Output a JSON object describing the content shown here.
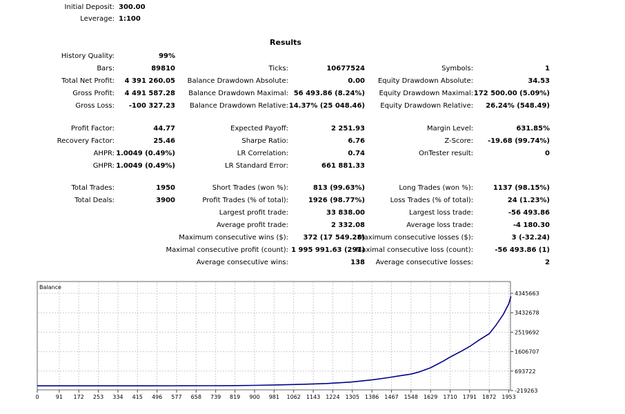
{
  "header": {
    "initial_deposit": {
      "label": "Initial Deposit:",
      "value": "300.00"
    },
    "leverage": {
      "label": "Leverage:",
      "value": "1:100"
    }
  },
  "results_title": "Results",
  "columns": [
    [
      {
        "label": "History Quality:",
        "value": "99%"
      },
      {
        "label": "Bars:",
        "value": "89810"
      },
      {
        "label": "Total Net Profit:",
        "value": "4 391 260.05"
      },
      {
        "label": "Gross Profit:",
        "value": "4 491 587.28"
      },
      {
        "label": "Gross Loss:",
        "value": "-100 327.23"
      },
      {
        "label": "",
        "value": ""
      },
      {
        "label": "Profit Factor:",
        "value": "44.77"
      },
      {
        "label": "Recovery Factor:",
        "value": "25.46"
      },
      {
        "label": "AHPR:",
        "value": "1.0049 (0.49%)"
      },
      {
        "label": "GHPR:",
        "value": "1.0049 (0.49%)"
      },
      {
        "label": "",
        "value": ""
      },
      {
        "label": "Total Trades:",
        "value": "1950"
      },
      {
        "label": "Total Deals:",
        "value": "3900"
      }
    ],
    [
      {
        "label": "",
        "value": ""
      },
      {
        "label": "Ticks:",
        "value": "10677524"
      },
      {
        "label": "Balance Drawdown Absolute:",
        "value": "0.00"
      },
      {
        "label": "Balance Drawdown Maximal:",
        "value": "56 493.86 (8.24%)"
      },
      {
        "label": "Balance Drawdown Relative:",
        "value": "14.37% (25 048.46)"
      },
      {
        "label": "",
        "value": ""
      },
      {
        "label": "Expected Payoff:",
        "value": "2 251.93"
      },
      {
        "label": "Sharpe Ratio:",
        "value": "6.76"
      },
      {
        "label": "LR Correlation:",
        "value": "0.74"
      },
      {
        "label": "LR Standard Error:",
        "value": "661 881.33"
      },
      {
        "label": "",
        "value": ""
      },
      {
        "label": "Short Trades (won %):",
        "value": "813 (99.63%)"
      },
      {
        "label": "Profit Trades (% of total):",
        "value": "1926 (98.77%)"
      },
      {
        "label": "Largest profit trade:",
        "value": "33 838.00"
      },
      {
        "label": "Average profit trade:",
        "value": "2 332.08"
      },
      {
        "label": "Maximum consecutive wins ($):",
        "value": "372 (17 549.28)"
      },
      {
        "label": "Maximal consecutive profit (count):",
        "value": "1 995 991.63 (291)"
      },
      {
        "label": "Average consecutive wins:",
        "value": "138"
      }
    ],
    [
      {
        "label": "",
        "value": ""
      },
      {
        "label": "Symbols:",
        "value": "1"
      },
      {
        "label": "Equity Drawdown Absolute:",
        "value": "34.53"
      },
      {
        "label": "Equity Drawdown Maximal:",
        "value": "172 500.00 (5.09%)"
      },
      {
        "label": "Equity Drawdown Relative:",
        "value": "26.24% (548.49)"
      },
      {
        "label": "",
        "value": ""
      },
      {
        "label": "Margin Level:",
        "value": "631.85%"
      },
      {
        "label": "Z-Score:",
        "value": "-19.68 (99.74%)"
      },
      {
        "label": "OnTester result:",
        "value": "0"
      },
      {
        "label": "",
        "value": ""
      },
      {
        "label": "",
        "value": ""
      },
      {
        "label": "Long Trades (won %):",
        "value": "1137 (98.15%)"
      },
      {
        "label": "Loss Trades (% of total):",
        "value": "24 (1.23%)"
      },
      {
        "label": "Largest loss trade:",
        "value": "-56 493.86"
      },
      {
        "label": "Average loss trade:",
        "value": "-4 180.30"
      },
      {
        "label": "Maximum consecutive losses ($):",
        "value": "3 (-32.24)"
      },
      {
        "label": "Maximal consecutive loss (count):",
        "value": "-56 493.86 (1)"
      },
      {
        "label": "Average consecutive losses:",
        "value": "2"
      }
    ]
  ],
  "chart_data": {
    "type": "line",
    "title": "Balance",
    "x_ticks": [
      0,
      91,
      172,
      253,
      334,
      415,
      496,
      577,
      658,
      739,
      819,
      900,
      981,
      1062,
      1143,
      1224,
      1305,
      1386,
      1467,
      1548,
      1629,
      1710,
      1791,
      1872,
      1953
    ],
    "y_ticks": [
      4345663,
      3432678,
      2519692,
      1606707,
      693722,
      -219263
    ],
    "xlim": [
      0,
      1960
    ],
    "ylim": [
      -219263,
      4345663
    ],
    "grid": true,
    "line_color": "#00008b",
    "series": [
      {
        "x": [
          0,
          150,
          300,
          450,
          600,
          700,
          800,
          900,
          1000,
          1100,
          1200,
          1300,
          1386,
          1450,
          1500,
          1548,
          1580,
          1629,
          1680,
          1710,
          1760,
          1791,
          1830,
          1872,
          1900,
          1930,
          1953,
          1962
        ],
        "y": [
          270,
          300,
          800,
          1500,
          3000,
          6000,
          12000,
          25000,
          45000,
          75000,
          110000,
          180000,
          280000,
          380000,
          470000,
          550000,
          650000,
          850000,
          1150000,
          1350000,
          1650000,
          1850000,
          2150000,
          2450000,
          2850000,
          3350000,
          3850000,
          4200000
        ]
      }
    ]
  }
}
